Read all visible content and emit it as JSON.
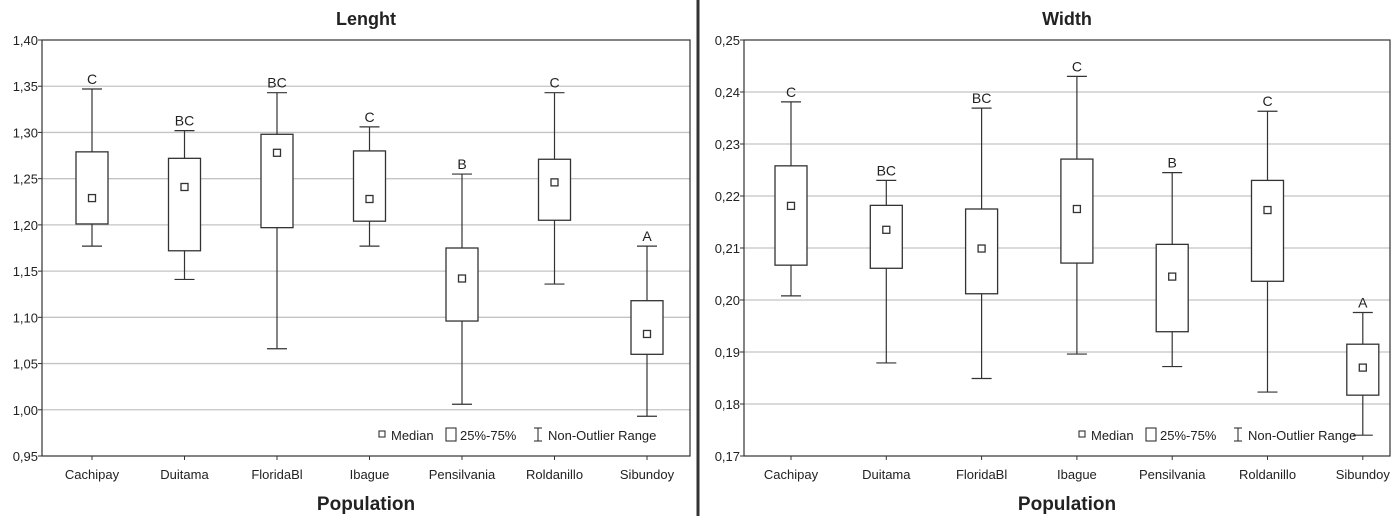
{
  "chart_data": [
    {
      "type": "box",
      "title": "Lenght",
      "xlabel": "Population",
      "ylabel": "",
      "ylim": [
        0.95,
        1.4
      ],
      "yticks": [
        "0,95",
        "1,00",
        "1,05",
        "1,10",
        "1,15",
        "1,20",
        "1,25",
        "1,30",
        "1,35",
        "1,40"
      ],
      "grid": true,
      "categories": [
        "Cachipay",
        "Duitama",
        "FloridaBl",
        "Ibague",
        "Pensilvania",
        "Roldanillo",
        "Sibundoy"
      ],
      "boxes": [
        {
          "min": 1.177,
          "q1": 1.201,
          "median": 1.229,
          "q3": 1.279,
          "max": 1.347,
          "group": "C"
        },
        {
          "min": 1.141,
          "q1": 1.172,
          "median": 1.241,
          "q3": 1.272,
          "max": 1.302,
          "group": "BC"
        },
        {
          "min": 1.066,
          "q1": 1.197,
          "median": 1.278,
          "q3": 1.298,
          "max": 1.343,
          "group": "BC"
        },
        {
          "min": 1.177,
          "q1": 1.204,
          "median": 1.228,
          "q3": 1.28,
          "max": 1.306,
          "group": "C"
        },
        {
          "min": 1.006,
          "q1": 1.096,
          "median": 1.142,
          "q3": 1.175,
          "max": 1.255,
          "group": "B"
        },
        {
          "min": 1.136,
          "q1": 1.205,
          "median": 1.246,
          "q3": 1.271,
          "max": 1.343,
          "group": "C"
        },
        {
          "min": 0.993,
          "q1": 1.06,
          "median": 1.082,
          "q3": 1.118,
          "max": 1.177,
          "group": "A"
        }
      ],
      "legend": {
        "median": "Median",
        "box": "25%-75%",
        "whisker": "Non-Outlier Range",
        "position": "bottom-right"
      }
    },
    {
      "type": "box",
      "title": "Width",
      "xlabel": "Population",
      "ylabel": "",
      "ylim": [
        0.17,
        0.25
      ],
      "yticks": [
        "0,17",
        "0,18",
        "0,19",
        "0,20",
        "0,21",
        "0,22",
        "0,23",
        "0,24",
        "0,25"
      ],
      "grid": true,
      "categories": [
        "Cachipay",
        "Duitama",
        "FloridaBl",
        "Ibague",
        "Pensilvania",
        "Roldanillo",
        "Sibundoy"
      ],
      "boxes": [
        {
          "min": 0.2008,
          "q1": 0.2067,
          "median": 0.2181,
          "q3": 0.2258,
          "max": 0.2381,
          "group": "C"
        },
        {
          "min": 0.1879,
          "q1": 0.2061,
          "median": 0.2135,
          "q3": 0.2182,
          "max": 0.223,
          "group": "BC"
        },
        {
          "min": 0.1849,
          "q1": 0.2012,
          "median": 0.2099,
          "q3": 0.2175,
          "max": 0.2369,
          "group": "BC"
        },
        {
          "min": 0.1896,
          "q1": 0.2071,
          "median": 0.2175,
          "q3": 0.2271,
          "max": 0.243,
          "group": "C"
        },
        {
          "min": 0.1872,
          "q1": 0.1939,
          "median": 0.2045,
          "q3": 0.2107,
          "max": 0.2245,
          "group": "B"
        },
        {
          "min": 0.1823,
          "q1": 0.2036,
          "median": 0.2173,
          "q3": 0.223,
          "max": 0.2363,
          "group": "C"
        },
        {
          "min": 0.174,
          "q1": 0.1817,
          "median": 0.187,
          "q3": 0.1915,
          "max": 0.1976,
          "group": "A"
        }
      ],
      "legend": {
        "median": "Median",
        "box": "25%-75%",
        "whisker": "Non-Outlier Range",
        "position": "bottom-right"
      }
    }
  ]
}
